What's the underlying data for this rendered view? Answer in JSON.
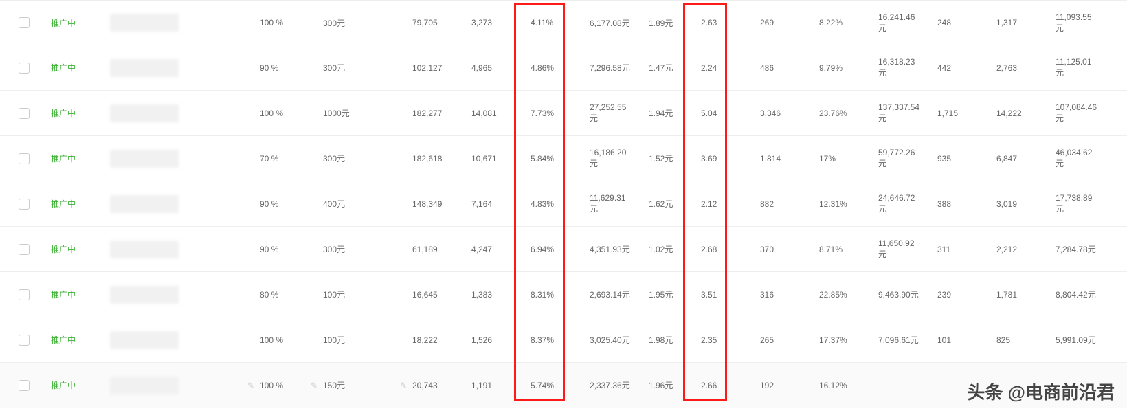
{
  "status_label": "推广中",
  "watermark": "头条 @电商前沿君",
  "highlight_columns": [
    "ctr",
    "roiA"
  ],
  "rows": [
    {
      "pct": "100 %",
      "budget": "300元",
      "imp": "79,705",
      "clk": "3,273",
      "ctr": "4.11%",
      "spend": "6,177.08元",
      "cpc": "1.89元",
      "roiA": "2.63",
      "cnv": "269",
      "cvr": "8.22%",
      "gmv": "16,241.46元",
      "ordA": "248",
      "ordB": "1,317",
      "last": "11,093.55元"
    },
    {
      "pct": "90 %",
      "budget": "300元",
      "imp": "102,127",
      "clk": "4,965",
      "ctr": "4.86%",
      "spend": "7,296.58元",
      "cpc": "1.47元",
      "roiA": "2.24",
      "cnv": "486",
      "cvr": "9.79%",
      "gmv": "16,318.23元",
      "ordA": "442",
      "ordB": "2,763",
      "last": "11,125.01元"
    },
    {
      "pct": "100 %",
      "budget": "1000元",
      "imp": "182,277",
      "clk": "14,081",
      "ctr": "7.73%",
      "spend": "27,252.55元",
      "cpc": "1.94元",
      "roiA": "5.04",
      "cnv": "3,346",
      "cvr": "23.76%",
      "gmv": "137,337.54元",
      "ordA": "1,715",
      "ordB": "14,222",
      "last": "107,084.46元"
    },
    {
      "pct": "70 %",
      "budget": "300元",
      "imp": "182,618",
      "clk": "10,671",
      "ctr": "5.84%",
      "spend": "16,186.20元",
      "cpc": "1.52元",
      "roiA": "3.69",
      "cnv": "1,814",
      "cvr": "17%",
      "gmv": "59,772.26元",
      "ordA": "935",
      "ordB": "6,847",
      "last": "46,034.62元"
    },
    {
      "pct": "90 %",
      "budget": "400元",
      "imp": "148,349",
      "clk": "7,164",
      "ctr": "4.83%",
      "spend": "11,629.31元",
      "cpc": "1.62元",
      "roiA": "2.12",
      "cnv": "882",
      "cvr": "12.31%",
      "gmv": "24,646.72元",
      "ordA": "388",
      "ordB": "3,019",
      "last": "17,738.89元"
    },
    {
      "pct": "90 %",
      "budget": "300元",
      "imp": "61,189",
      "clk": "4,247",
      "ctr": "6.94%",
      "spend": "4,351.93元",
      "cpc": "1.02元",
      "roiA": "2.68",
      "cnv": "370",
      "cvr": "8.71%",
      "gmv": "11,650.92元",
      "ordA": "311",
      "ordB": "2,212",
      "last": "7,284.78元"
    },
    {
      "pct": "80 %",
      "budget": "100元",
      "imp": "16,645",
      "clk": "1,383",
      "ctr": "8.31%",
      "spend": "2,693.14元",
      "cpc": "1.95元",
      "roiA": "3.51",
      "cnv": "316",
      "cvr": "22.85%",
      "gmv": "9,463.90元",
      "ordA": "239",
      "ordB": "1,781",
      "last": "8,804.42元"
    },
    {
      "pct": "100 %",
      "budget": "100元",
      "imp": "18,222",
      "clk": "1,526",
      "ctr": "8.37%",
      "spend": "3,025.40元",
      "cpc": "1.98元",
      "roiA": "2.35",
      "cnv": "265",
      "cvr": "17.37%",
      "gmv": "7,096.61元",
      "ordA": "101",
      "ordB": "825",
      "last": "5,991.09元"
    },
    {
      "pct": "100 %",
      "budget": "150元",
      "imp": "20,743",
      "clk": "1,191",
      "ctr": "5.74%",
      "spend": "2,337.36元",
      "cpc": "1.96元",
      "roiA": "2.66",
      "cnv": "192",
      "cvr": "16.12%",
      "gmv": "",
      "ordA": "",
      "ordB": "",
      "last": ""
    }
  ]
}
